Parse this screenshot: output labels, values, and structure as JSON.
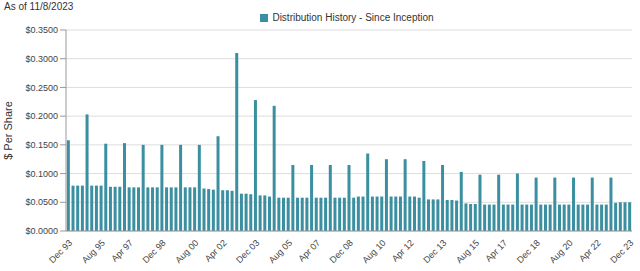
{
  "chart_data": {
    "type": "bar",
    "title": "Distribution History - Since Inception",
    "subtitle": "As of 11/8/2023",
    "y_label": "$ Per Share",
    "legend": "top",
    "grid": true,
    "categories": [
      "Dec 93",
      null,
      null,
      null,
      null,
      null,
      null,
      "Aug 95",
      null,
      null,
      null,
      null,
      null,
      "Apr 97",
      null,
      null,
      null,
      null,
      null,
      null,
      "Dec 98",
      null,
      null,
      null,
      null,
      null,
      null,
      "Aug 00",
      null,
      null,
      null,
      null,
      null,
      "Apr 02",
      null,
      null,
      null,
      null,
      null,
      null,
      "Dec 03",
      null,
      null,
      null,
      null,
      null,
      null,
      "Aug 05",
      null,
      null,
      null,
      null,
      null,
      "Apr 07",
      null,
      null,
      null,
      null,
      null,
      null,
      "Dec 08",
      null,
      null,
      null,
      null,
      null,
      null,
      "Aug 10",
      null,
      null,
      null,
      null,
      null,
      "Apr 12",
      null,
      null,
      null,
      null,
      null,
      null,
      "Dec 13",
      null,
      null,
      null,
      null,
      null,
      null,
      "Aug 15",
      null,
      null,
      null,
      null,
      null,
      "Apr 17",
      null,
      null,
      null,
      null,
      null,
      null,
      "Dec 18",
      null,
      null,
      null,
      null,
      null,
      null,
      "Aug 20",
      null,
      null,
      null,
      null,
      null,
      "Apr 22",
      null,
      null,
      null,
      null,
      null,
      null,
      "Dec 23"
    ],
    "series": [
      {
        "name": "Distribution History - Since Inception",
        "color": "#3a8fa0",
        "values": [
          0.158,
          0.079,
          0.079,
          0.079,
          0.203,
          0.079,
          0.079,
          0.079,
          0.152,
          0.077,
          0.077,
          0.077,
          0.153,
          0.076,
          0.076,
          0.076,
          0.15,
          0.076,
          0.076,
          0.076,
          0.15,
          0.076,
          0.076,
          0.076,
          0.15,
          0.076,
          0.076,
          0.076,
          0.15,
          0.074,
          0.073,
          0.072,
          0.165,
          0.071,
          0.071,
          0.07,
          0.31,
          0.065,
          0.065,
          0.064,
          0.228,
          0.062,
          0.062,
          0.06,
          0.218,
          0.058,
          0.058,
          0.058,
          0.115,
          0.058,
          0.058,
          0.058,
          0.115,
          0.058,
          0.058,
          0.058,
          0.115,
          0.058,
          0.058,
          0.058,
          0.115,
          0.058,
          0.06,
          0.06,
          0.135,
          0.06,
          0.06,
          0.06,
          0.125,
          0.06,
          0.06,
          0.06,
          0.125,
          0.06,
          0.06,
          0.058,
          0.122,
          0.055,
          0.055,
          0.055,
          0.115,
          0.054,
          0.054,
          0.053,
          0.103,
          0.048,
          0.047,
          0.047,
          0.098,
          0.046,
          0.046,
          0.046,
          0.098,
          0.046,
          0.046,
          0.046,
          0.1,
          0.046,
          0.046,
          0.046,
          0.093,
          0.046,
          0.046,
          0.046,
          0.093,
          0.046,
          0.046,
          0.046,
          0.093,
          0.046,
          0.046,
          0.046,
          0.093,
          0.046,
          0.046,
          0.046,
          0.093,
          0.049,
          0.05,
          0.05,
          0.05
        ]
      }
    ],
    "ylim": [
      0,
      0.35
    ],
    "yticks": [
      {
        "value": 0,
        "label": "$0.0000"
      },
      {
        "value": 0.05,
        "label": "$0.0500"
      },
      {
        "value": 0.1,
        "label": "$0.1000"
      },
      {
        "value": 0.15,
        "label": "$0.1500"
      },
      {
        "value": 0.2,
        "label": "$0.2000"
      },
      {
        "value": 0.25,
        "label": "$0.2500"
      },
      {
        "value": 0.3,
        "label": "$0.3000"
      },
      {
        "value": 0.35,
        "label": "$0.3500"
      }
    ]
  }
}
